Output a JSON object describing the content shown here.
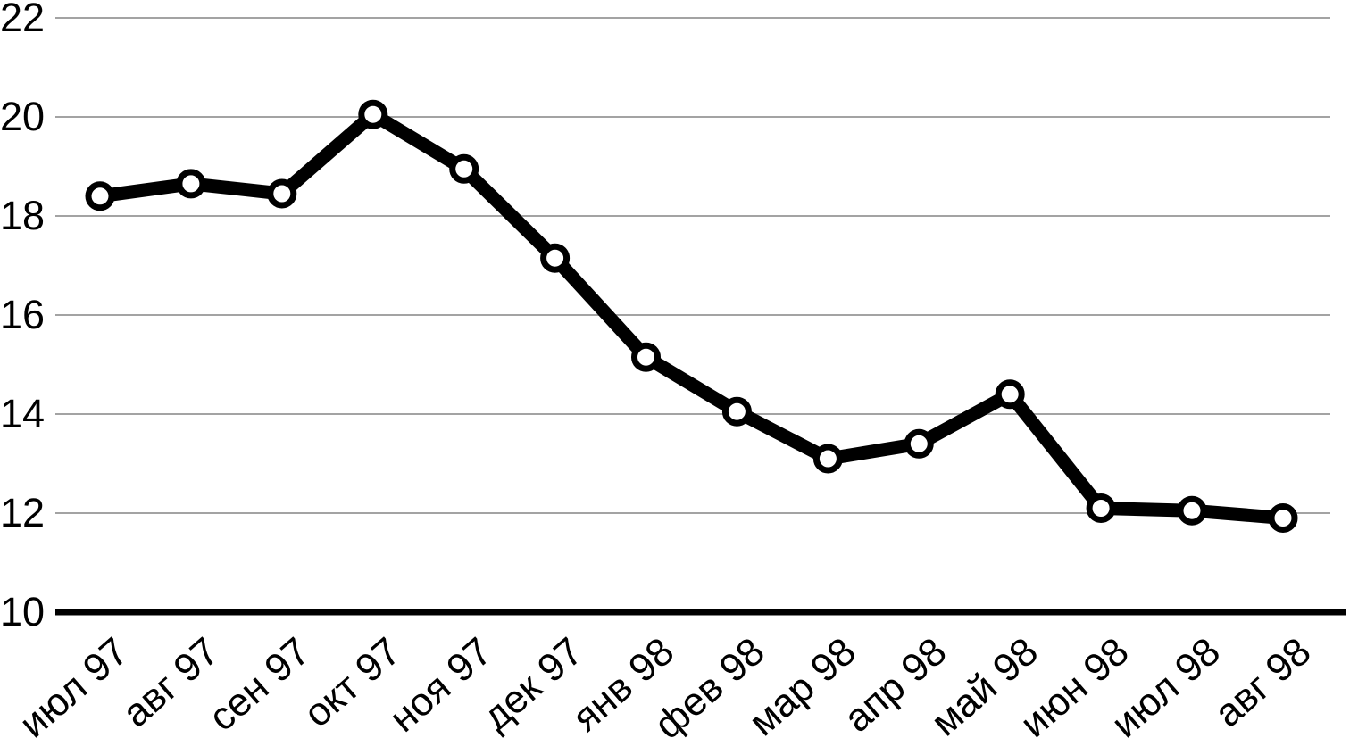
{
  "chart_data": {
    "type": "line",
    "title": "",
    "xlabel": "",
    "ylabel": "",
    "categories": [
      "июл 97",
      "авг 97",
      "сен 97",
      "окт 97",
      "ноя 97",
      "дек 97",
      "янв 98",
      "фев 98",
      "мар 98",
      "апр 98",
      "май 98",
      "июн 98",
      "июл 98",
      "авг 98"
    ],
    "values": [
      18.4,
      18.65,
      18.45,
      20.05,
      18.95,
      17.15,
      15.15,
      14.05,
      13.1,
      13.4,
      14.4,
      12.1,
      12.05,
      11.9
    ],
    "ylim": [
      10,
      22
    ],
    "yticks": [
      10,
      12,
      14,
      16,
      18,
      20,
      22
    ],
    "grid": true,
    "legend_position": "none",
    "series": [
      {
        "name": "series-1",
        "line_color": "#000000",
        "marker": "circle",
        "marker_fill": "#ffffff",
        "marker_border_color": "#000000"
      }
    ],
    "gridline_color": "#a3a3a3",
    "axis_line_color": "#000000",
    "background_color": "#ffffff",
    "text_color": "#000000"
  }
}
